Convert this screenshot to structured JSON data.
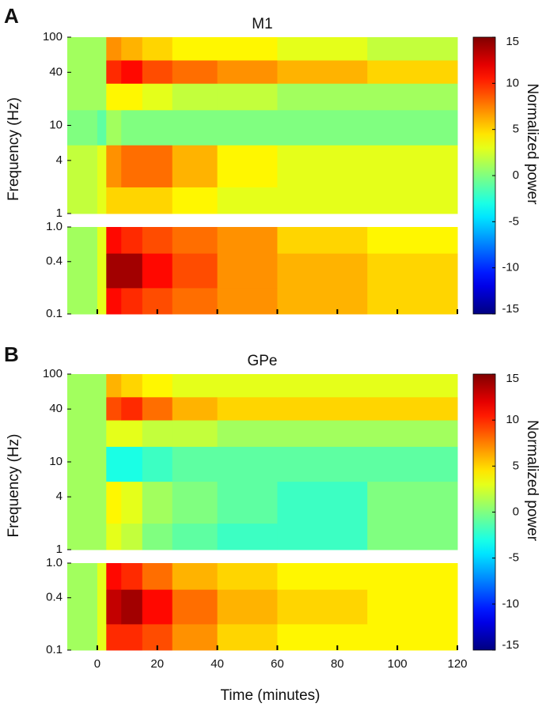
{
  "chart_data": [
    {
      "type": "heatmap",
      "panel": "A",
      "title": "M1",
      "ylabel": "Frequency (Hz)",
      "xlim": [
        -10,
        120
      ],
      "xticks": [
        0,
        20,
        40,
        60,
        80,
        100,
        120
      ],
      "x": [
        -10,
        0,
        3,
        8,
        15,
        25,
        40,
        60,
        90,
        120
      ],
      "log_y": true,
      "colormap": "jet",
      "subplots": [
        {
          "ylim": [
            1,
            100
          ],
          "yticks": [
            1,
            4,
            10,
            40,
            100
          ],
          "y": [
            1,
            2,
            6,
            15,
            30,
            55,
            100
          ],
          "values": [
            [
              2,
              3,
              5,
              5,
              5,
              4,
              3,
              3,
              3
            ],
            [
              2,
              3,
              7,
              8,
              8,
              6,
              4,
              3,
              3
            ],
            [
              0,
              -1,
              1,
              0,
              0,
              0,
              0,
              0,
              0
            ],
            [
              1,
              1,
              4,
              4,
              3,
              2,
              2,
              1,
              1
            ],
            [
              1,
              1,
              10,
              11,
              9,
              8,
              7,
              6,
              5
            ],
            [
              1,
              1,
              7,
              6,
              5,
              4,
              4,
              3,
              2
            ]
          ]
        },
        {
          "ylim": [
            0.1,
            1
          ],
          "yticks": [
            0.1,
            0.4,
            {
              "value": 1,
              "label": "1.0"
            }
          ],
          "y": [
            0.1,
            0.2,
            0.5,
            1
          ],
          "values": [
            [
              1,
              3,
              11,
              10,
              9,
              8,
              7,
              6,
              5
            ],
            [
              1,
              3,
              14,
              14,
              11,
              9,
              7,
              6,
              5
            ],
            [
              1,
              3,
              11,
              10,
              9,
              8,
              7,
              5,
              4
            ]
          ]
        }
      ],
      "colorbar": {
        "clim": [
          -15,
          15
        ],
        "ticks": [
          15,
          10,
          5,
          0,
          -5,
          -10,
          -15
        ],
        "label": "Normalized power"
      }
    },
    {
      "type": "heatmap",
      "panel": "B",
      "title": "GPe",
      "ylabel": "Frequency (Hz)",
      "xlabel": "Time (minutes)",
      "xlim": [
        -10,
        120
      ],
      "xticks": [
        0,
        20,
        40,
        60,
        80,
        100,
        120
      ],
      "x": [
        -10,
        0,
        3,
        8,
        15,
        25,
        40,
        60,
        90,
        120
      ],
      "log_y": true,
      "colormap": "jet",
      "subplots": [
        {
          "ylim": [
            1,
            100
          ],
          "yticks": [
            1,
            4,
            10,
            40,
            100
          ],
          "y": [
            1,
            2,
            6,
            15,
            30,
            55,
            100
          ],
          "values": [
            [
              1,
              1,
              3,
              2,
              0,
              -1,
              -2,
              -2,
              0
            ],
            [
              1,
              1,
              4,
              3,
              1,
              0,
              -1,
              -2,
              0
            ],
            [
              1,
              1,
              -3,
              -3,
              -2,
              -1,
              -1,
              -1,
              -1
            ],
            [
              1,
              1,
              3,
              3,
              2,
              2,
              1,
              1,
              1
            ],
            [
              1,
              1,
              9,
              10,
              8,
              6,
              5,
              5,
              5
            ],
            [
              1,
              1,
              6,
              5,
              4,
              3,
              3,
              3,
              3
            ]
          ]
        },
        {
          "ylim": [
            0.1,
            1
          ],
          "yticks": [
            0.1,
            0.4,
            {
              "value": 1,
              "label": "1.0"
            }
          ],
          "y": [
            0.1,
            0.2,
            0.5,
            1
          ],
          "values": [
            [
              1,
              3,
              10,
              10,
              9,
              7,
              5,
              4,
              4
            ],
            [
              1,
              3,
              13,
              14,
              11,
              8,
              6,
              5,
              4
            ],
            [
              1,
              3,
              11,
              10,
              8,
              6,
              5,
              4,
              4
            ]
          ]
        }
      ],
      "colorbar": {
        "clim": [
          -15,
          15
        ],
        "ticks": [
          15,
          10,
          5,
          0,
          -5,
          -10,
          -15
        ],
        "label": "Normalized power"
      }
    }
  ]
}
